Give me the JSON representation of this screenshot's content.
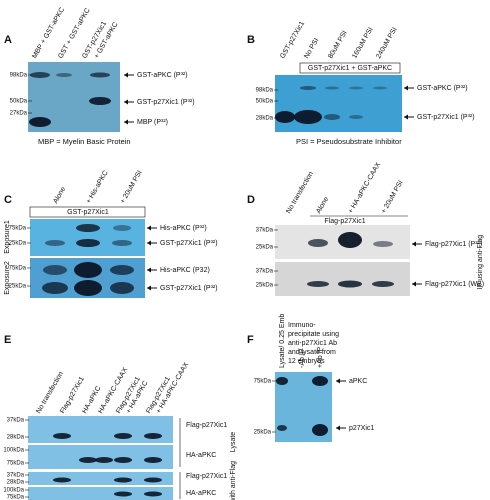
{
  "panels": [
    {
      "letter": "A",
      "lanes": [
        "MBP + GST-aPKC",
        "GST + GST-aPKC",
        "GST-p27Xic1",
        "+ GST-aPKC"
      ],
      "markers": [
        "98kDa",
        "50kDa",
        "27kDa"
      ],
      "bands": [
        "GST-aPKC (P³²)",
        "GST-p27Xic1 (P³²)",
        "MBP (P³²)"
      ],
      "caption": "MBP = Myelin Basic Protein"
    },
    {
      "letter": "B",
      "lanes": [
        "GST-p27Xic1",
        "No PSI",
        "80uM PSI",
        "160uM PSI",
        "240uM PSI"
      ],
      "header": "GST-p27Xic1 + GST-aPKC",
      "markers": [
        "98kDa",
        "50kDa",
        "28kDa"
      ],
      "bands": [
        "GST-aPKC (P³²)",
        "GST-p27Xic1 (P³²)"
      ],
      "caption": "PSI = Pseudosubstrate Inhibitor"
    },
    {
      "letter": "C",
      "lanes": [
        "Alone",
        "+ His-aPKC",
        "+ 20uM PSI"
      ],
      "header": "GST-p27Xic1",
      "sides": [
        "Exposure1",
        "Exposure2"
      ],
      "markers": [
        "75kDa",
        "25kDa",
        "75kDa",
        "25kDa"
      ],
      "bands": [
        "His-aPKC (P³²)",
        "GST-p27Xic1 (P³²)",
        "His-aPKC (P32)",
        "GST-p27Xic1 (P³²)"
      ]
    },
    {
      "letter": "D",
      "lanes": [
        "No transfection",
        "Alone",
        "+ HA-aPKC-CAAX",
        "+ 20uM PSI"
      ],
      "header": "Flag-p27Xic1",
      "sides": [
        "IP using anti-Flag"
      ],
      "markers": [
        "37kDa",
        "25kDa",
        "37kDa",
        "25kDa"
      ],
      "bands": [
        "Flag-p27Xic1 (P³²)",
        "Flag-p27Xic1 (WB)"
      ]
    },
    {
      "letter": "E",
      "lanes": [
        "No transfection",
        "Flag-p27Xic1",
        "HA-aPKC",
        "HA-aPKC-CAAX",
        "Flag-p27Xic1",
        "+ HA-aPKC",
        "Flag-p27Xic1",
        "+ HA-aPKC-CAAX"
      ],
      "sides": [
        "Lysate",
        "IP with anti-Flag"
      ],
      "markers": [
        "37kDa",
        "28kDa",
        "100kDa",
        "75kDa",
        "37kDa",
        "28kDa",
        "100kDa",
        "75kDa"
      ],
      "bands": [
        "Flag-p27Xic1",
        "HA-aPKC",
        "Flag-p27Xic1",
        "HA-aPKC"
      ]
    },
    {
      "letter": "F",
      "note": [
        "Immuno-",
        "precipitate using",
        "anti-p27Xic1 Ab",
        "and lysate from",
        "12 embryos"
      ],
      "lanes": [
        "Lysate/ 0.25 Emb",
        "-Ab IP",
        "+Ab IP"
      ],
      "markers": [
        "75kDa",
        "25kDa"
      ],
      "bands": [
        "aPKC",
        "p27Xic1"
      ]
    }
  ]
}
